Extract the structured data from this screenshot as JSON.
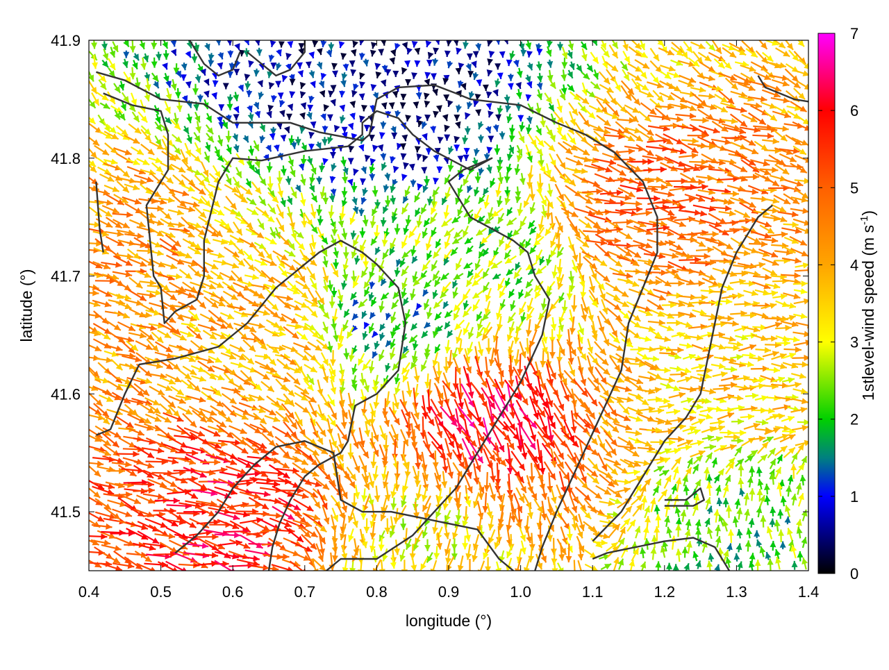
{
  "chart_data": {
    "type": "vector-field",
    "xlabel": "longitude (°)",
    "ylabel": "latitude (°)",
    "xlim": [
      0.4,
      1.4
    ],
    "ylim": [
      41.45,
      41.9
    ],
    "x_ticks": [
      0.4,
      0.5,
      0.6,
      0.7,
      0.8,
      0.9,
      1.0,
      1.1,
      1.2,
      1.3,
      1.4
    ],
    "x_tick_labels": [
      "0.4",
      "0.5",
      "0.6",
      "0.7",
      "0.8",
      "0.9",
      "1.0",
      "1.1",
      "1.2",
      "1.3",
      "1.4"
    ],
    "y_ticks": [
      41.5,
      41.6,
      41.7,
      41.8,
      41.9
    ],
    "y_tick_labels": [
      "41.5",
      "41.6",
      "41.7",
      "41.8",
      "41.9"
    ],
    "grid": false,
    "colorbar": {
      "label_main": "1stlevel-wind speed (m s",
      "label_exp": "-1",
      "label_close": ")",
      "range": [
        0,
        7
      ],
      "ticks": [
        0,
        1,
        2,
        3,
        4,
        5,
        6,
        7
      ],
      "tick_labels": [
        "0",
        "1",
        "2",
        "3",
        "4",
        "5",
        "6",
        "7"
      ],
      "colormap": [
        [
          0,
          "#000000"
        ],
        [
          1,
          "#0000ff"
        ],
        [
          1.5,
          "#008080"
        ],
        [
          2,
          "#00d000"
        ],
        [
          3,
          "#ffff00"
        ],
        [
          4,
          "#ffa500"
        ],
        [
          5,
          "#ff6000"
        ],
        [
          6,
          "#ff0000"
        ],
        [
          7,
          "#ff00ff"
        ]
      ]
    },
    "contour_color": "#333333",
    "wind_regions": [
      {
        "lon": 0.95,
        "lat": 41.58,
        "speed": 6.0,
        "dir_deg": 155
      },
      {
        "lon": 0.6,
        "lat": 41.5,
        "speed": 5.8,
        "dir_deg": 100
      },
      {
        "lon": 1.18,
        "lat": 41.76,
        "speed": 5.0,
        "dir_deg": 100
      },
      {
        "lon": 0.45,
        "lat": 41.72,
        "speed": 4.4,
        "dir_deg": 110
      },
      {
        "lon": 0.85,
        "lat": 41.85,
        "speed": 0.5,
        "dir_deg": 180
      },
      {
        "lon": 0.72,
        "lat": 41.88,
        "speed": 0.7,
        "dir_deg": 180
      },
      {
        "lon": 0.82,
        "lat": 41.66,
        "speed": 1.7,
        "dir_deg": 210
      },
      {
        "lon": 0.95,
        "lat": 41.71,
        "speed": 2.4,
        "dir_deg": 220
      },
      {
        "lon": 1.32,
        "lat": 41.48,
        "speed": 2.2,
        "dir_deg": 0
      },
      {
        "lon": 0.85,
        "lat": 41.48,
        "speed": 3.2,
        "dir_deg": 190
      },
      {
        "lon": 0.65,
        "lat": 41.66,
        "speed": 3.9,
        "dir_deg": 115
      },
      {
        "lon": 1.3,
        "lat": 41.62,
        "speed": 3.6,
        "dir_deg": 90
      }
    ],
    "contours": [
      [
        [
          0.41,
          41.873
        ],
        [
          0.45,
          41.866
        ],
        [
          0.5,
          41.85
        ],
        [
          0.56,
          41.846
        ],
        [
          0.6,
          41.83
        ],
        [
          0.63,
          41.83
        ],
        [
          0.68,
          41.83
        ],
        [
          0.72,
          41.822
        ],
        [
          0.78,
          41.815
        ],
        [
          0.79,
          41.82
        ],
        [
          0.8,
          41.85
        ],
        [
          0.83,
          41.86
        ],
        [
          0.88,
          41.862
        ],
        [
          0.91,
          41.855
        ],
        [
          0.93,
          41.85
        ],
        [
          1.0,
          41.845
        ],
        [
          1.05,
          41.83
        ],
        [
          1.09,
          41.82
        ],
        [
          1.13,
          41.805
        ],
        [
          1.17,
          41.78
        ],
        [
          1.19,
          41.75
        ],
        [
          1.19,
          41.72
        ],
        [
          1.17,
          41.69
        ],
        [
          1.15,
          41.66
        ],
        [
          1.14,
          41.62
        ],
        [
          1.11,
          41.58
        ],
        [
          1.08,
          41.54
        ],
        [
          1.05,
          41.5
        ],
        [
          1.03,
          41.47
        ],
        [
          1.02,
          41.45
        ]
      ],
      [
        [
          0.42,
          41.855
        ],
        [
          0.46,
          41.845
        ],
        [
          0.5,
          41.84
        ],
        [
          0.51,
          41.82
        ],
        [
          0.51,
          41.79
        ],
        [
          0.48,
          41.76
        ],
        [
          0.485,
          41.73
        ],
        [
          0.49,
          41.7
        ],
        [
          0.5,
          41.69
        ],
        [
          0.505,
          41.66
        ],
        [
          0.52,
          41.67
        ],
        [
          0.55,
          41.68
        ],
        [
          0.56,
          41.7
        ],
        [
          0.56,
          41.73
        ],
        [
          0.58,
          41.78
        ],
        [
          0.6,
          41.8
        ],
        [
          0.64,
          41.798
        ],
        [
          0.7,
          41.806
        ],
        [
          0.76,
          41.81
        ],
        [
          0.78,
          41.82
        ],
        [
          0.78,
          41.83
        ],
        [
          0.8,
          41.84
        ],
        [
          0.83,
          41.834
        ],
        [
          0.85,
          41.82
        ],
        [
          0.88,
          41.806
        ],
        [
          0.93,
          41.79
        ],
        [
          0.96,
          41.8
        ],
        [
          0.92,
          41.79
        ],
        [
          0.9,
          41.78
        ],
        [
          0.93,
          41.75
        ],
        [
          0.96,
          41.74
        ],
        [
          0.99,
          41.73
        ],
        [
          1.01,
          41.72
        ],
        [
          1.02,
          41.7
        ],
        [
          1.04,
          41.68
        ],
        [
          1.03,
          41.65
        ],
        [
          1.0,
          41.61
        ],
        [
          0.97,
          41.58
        ],
        [
          0.94,
          41.55
        ],
        [
          0.91,
          41.52
        ],
        [
          0.88,
          41.5
        ],
        [
          0.85,
          41.48
        ],
        [
          0.8,
          41.46
        ],
        [
          0.75,
          41.46
        ],
        [
          0.73,
          41.45
        ]
      ],
      [
        [
          0.41,
          41.565
        ],
        [
          0.43,
          41.57
        ],
        [
          0.45,
          41.6
        ],
        [
          0.47,
          41.625
        ],
        [
          0.52,
          41.63
        ],
        [
          0.58,
          41.64
        ],
        [
          0.62,
          41.66
        ],
        [
          0.66,
          41.69
        ],
        [
          0.7,
          41.71
        ],
        [
          0.72,
          41.72
        ],
        [
          0.75,
          41.73
        ],
        [
          0.78,
          41.72
        ],
        [
          0.8,
          41.71
        ],
        [
          0.83,
          41.69
        ],
        [
          0.84,
          41.66
        ],
        [
          0.83,
          41.62
        ],
        [
          0.8,
          41.6
        ],
        [
          0.77,
          41.59
        ],
        [
          0.76,
          41.56
        ],
        [
          0.75,
          41.55
        ],
        [
          0.72,
          41.54
        ],
        [
          0.7,
          41.53
        ],
        [
          0.68,
          41.51
        ],
        [
          0.665,
          41.49
        ],
        [
          0.655,
          41.47
        ],
        [
          0.65,
          41.45
        ]
      ],
      [
        [
          0.52,
          41.465
        ],
        [
          0.55,
          41.48
        ],
        [
          0.58,
          41.5
        ],
        [
          0.6,
          41.52
        ],
        [
          0.63,
          41.54
        ],
        [
          0.66,
          41.555
        ],
        [
          0.7,
          41.56
        ],
        [
          0.72,
          41.555
        ],
        [
          0.74,
          41.55
        ],
        [
          0.745,
          41.53
        ],
        [
          0.75,
          41.51
        ],
        [
          0.78,
          41.5
        ],
        [
          0.82,
          41.5
        ],
        [
          0.86,
          41.495
        ],
        [
          0.9,
          41.49
        ],
        [
          0.94,
          41.485
        ],
        [
          0.97,
          41.46
        ],
        [
          0.99,
          41.45
        ]
      ],
      [
        [
          1.2,
          41.51
        ],
        [
          1.23,
          41.51
        ],
        [
          1.25,
          41.52
        ],
        [
          1.255,
          41.51
        ],
        [
          1.24,
          41.505
        ],
        [
          1.22,
          41.505
        ],
        [
          1.2,
          41.505
        ]
      ],
      [
        [
          1.1,
          41.46
        ],
        [
          1.12,
          41.465
        ],
        [
          1.16,
          41.47
        ],
        [
          1.2,
          41.475
        ],
        [
          1.24,
          41.478
        ],
        [
          1.27,
          41.47
        ],
        [
          1.28,
          41.46
        ],
        [
          1.29,
          41.45
        ]
      ],
      [
        [
          0.41,
          41.78
        ],
        [
          0.415,
          41.74
        ],
        [
          0.42,
          41.72
        ]
      ],
      [
        [
          1.35,
          41.76
        ],
        [
          1.33,
          41.75
        ],
        [
          1.3,
          41.72
        ],
        [
          1.28,
          41.69
        ],
        [
          1.27,
          41.66
        ],
        [
          1.26,
          41.63
        ],
        [
          1.25,
          41.6
        ],
        [
          1.23,
          41.58
        ],
        [
          1.2,
          41.56
        ],
        [
          1.17,
          41.53
        ],
        [
          1.14,
          41.5
        ],
        [
          1.1,
          41.475
        ]
      ],
      [
        [
          1.33,
          41.87
        ],
        [
          1.34,
          41.86
        ],
        [
          1.36,
          41.855
        ],
        [
          1.38,
          41.85
        ],
        [
          1.4,
          41.848
        ]
      ],
      [
        [
          0.62,
          41.89
        ],
        [
          0.64,
          41.88
        ],
        [
          0.66,
          41.87
        ],
        [
          0.68,
          41.875
        ],
        [
          0.7,
          41.89
        ],
        [
          0.7,
          41.9
        ]
      ],
      [
        [
          0.54,
          41.9
        ],
        [
          0.56,
          41.88
        ],
        [
          0.58,
          41.87
        ],
        [
          0.6,
          41.875
        ],
        [
          0.61,
          41.89
        ]
      ]
    ]
  }
}
